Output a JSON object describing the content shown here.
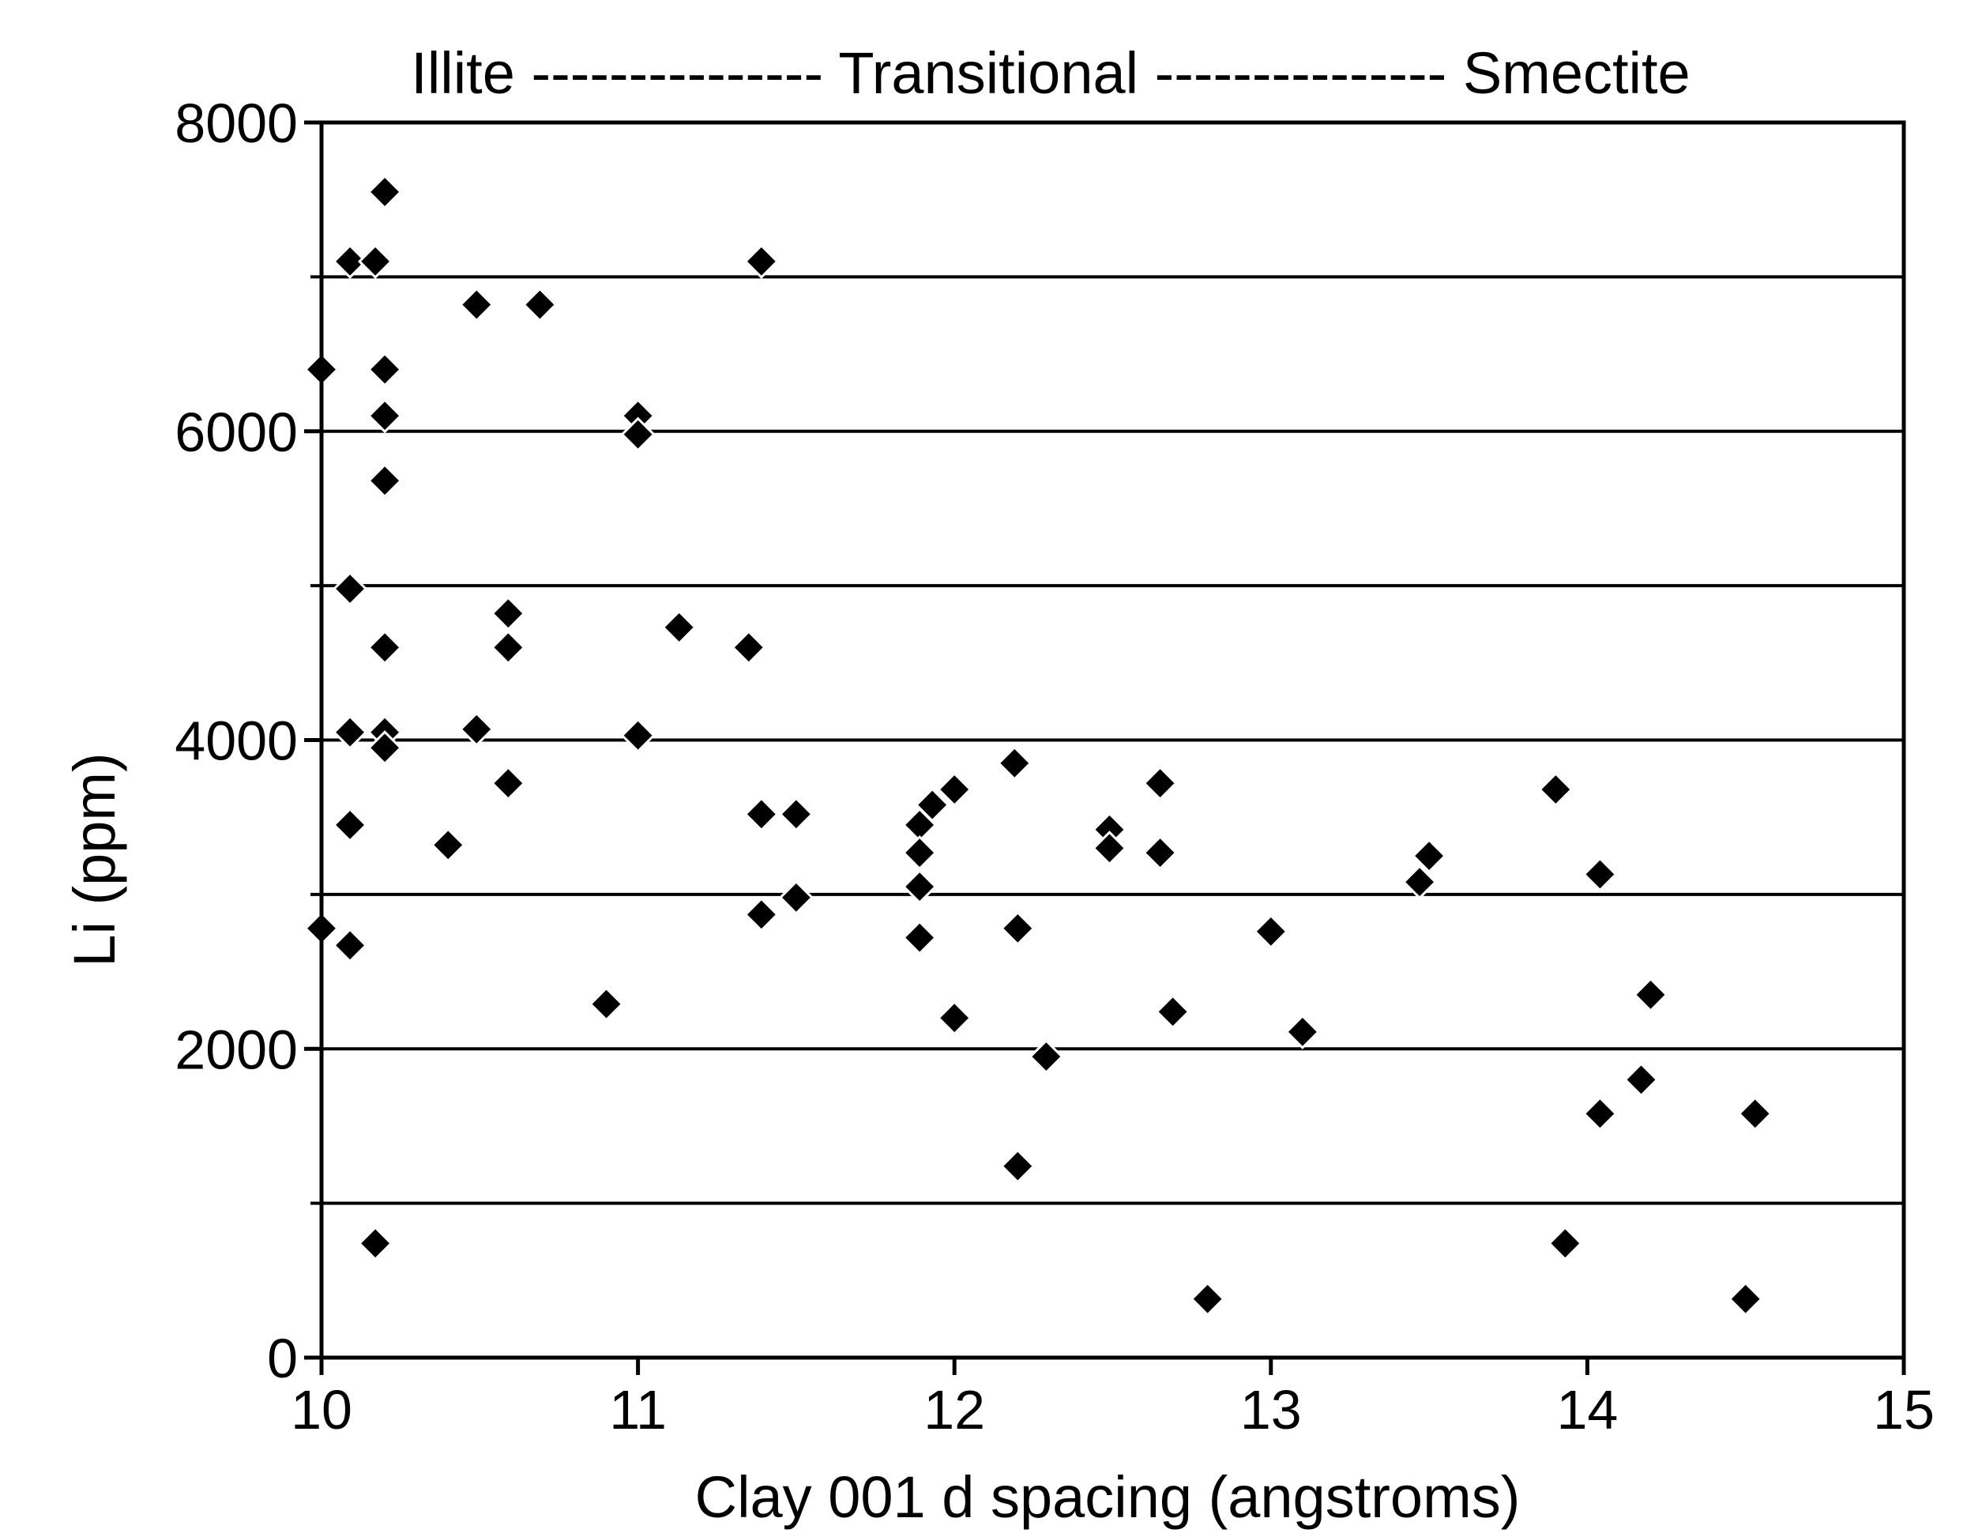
{
  "chart_data": {
    "type": "scatter",
    "header": "Illite --------------- Transitional --------------- Smectite",
    "xlabel": "Clay 001 d spacing (angstroms)",
    "ylabel": "Li (ppm)",
    "xlim": [
      10,
      15
    ],
    "ylim": [
      0,
      8000
    ],
    "x_ticks": [
      10,
      11,
      12,
      13,
      14,
      15
    ],
    "x_tick_labels": [
      "10",
      "11",
      "12",
      "13",
      "14",
      "15"
    ],
    "y_ticks": [
      0,
      2000,
      4000,
      6000,
      8000
    ],
    "y_tick_labels": [
      "0",
      "2000",
      "4000",
      "6000",
      "8000"
    ],
    "y_gridlines": [
      1000,
      2000,
      3000,
      4000,
      5000,
      6000,
      7000
    ],
    "marker": "filled diamond",
    "series": [
      {
        "name": "samples",
        "points": [
          {
            "x": 10.0,
            "y": 6400
          },
          {
            "x": 10.0,
            "y": 2780
          },
          {
            "x": 10.09,
            "y": 7100
          },
          {
            "x": 10.09,
            "y": 4980
          },
          {
            "x": 10.09,
            "y": 4050
          },
          {
            "x": 10.09,
            "y": 3450
          },
          {
            "x": 10.09,
            "y": 2670
          },
          {
            "x": 10.17,
            "y": 7100
          },
          {
            "x": 10.17,
            "y": 740
          },
          {
            "x": 10.2,
            "y": 7550
          },
          {
            "x": 10.2,
            "y": 6400
          },
          {
            "x": 10.2,
            "y": 6100
          },
          {
            "x": 10.2,
            "y": 5680
          },
          {
            "x": 10.2,
            "y": 4600
          },
          {
            "x": 10.2,
            "y": 4050
          },
          {
            "x": 10.2,
            "y": 3950
          },
          {
            "x": 10.4,
            "y": 3320
          },
          {
            "x": 10.49,
            "y": 6820
          },
          {
            "x": 10.49,
            "y": 4070
          },
          {
            "x": 10.59,
            "y": 4820
          },
          {
            "x": 10.59,
            "y": 4600
          },
          {
            "x": 10.59,
            "y": 3720
          },
          {
            "x": 10.69,
            "y": 6820
          },
          {
            "x": 10.9,
            "y": 2290
          },
          {
            "x": 11.0,
            "y": 6100
          },
          {
            "x": 11.0,
            "y": 5980
          },
          {
            "x": 11.0,
            "y": 4030
          },
          {
            "x": 11.13,
            "y": 4730
          },
          {
            "x": 11.35,
            "y": 4600
          },
          {
            "x": 11.39,
            "y": 7100
          },
          {
            "x": 11.39,
            "y": 3520
          },
          {
            "x": 11.39,
            "y": 2870
          },
          {
            "x": 11.5,
            "y": 3520
          },
          {
            "x": 11.5,
            "y": 2980
          },
          {
            "x": 11.89,
            "y": 3450
          },
          {
            "x": 11.89,
            "y": 3270
          },
          {
            "x": 11.89,
            "y": 3050
          },
          {
            "x": 11.89,
            "y": 2720
          },
          {
            "x": 11.93,
            "y": 3580
          },
          {
            "x": 12.0,
            "y": 3680
          },
          {
            "x": 12.0,
            "y": 2200
          },
          {
            "x": 12.19,
            "y": 3850
          },
          {
            "x": 12.2,
            "y": 2780
          },
          {
            "x": 12.2,
            "y": 1240
          },
          {
            "x": 12.29,
            "y": 1950
          },
          {
            "x": 12.49,
            "y": 3420
          },
          {
            "x": 12.49,
            "y": 3300
          },
          {
            "x": 12.65,
            "y": 3720
          },
          {
            "x": 12.65,
            "y": 3270
          },
          {
            "x": 12.69,
            "y": 2240
          },
          {
            "x": 12.8,
            "y": 380
          },
          {
            "x": 13.0,
            "y": 2760
          },
          {
            "x": 13.1,
            "y": 2110
          },
          {
            "x": 13.47,
            "y": 3080
          },
          {
            "x": 13.5,
            "y": 3250
          },
          {
            "x": 13.9,
            "y": 3680
          },
          {
            "x": 13.93,
            "y": 740
          },
          {
            "x": 14.04,
            "y": 3130
          },
          {
            "x": 14.04,
            "y": 1580
          },
          {
            "x": 14.17,
            "y": 1800
          },
          {
            "x": 14.2,
            "y": 2350
          },
          {
            "x": 14.5,
            "y": 380
          },
          {
            "x": 14.53,
            "y": 1580
          }
        ]
      }
    ]
  }
}
